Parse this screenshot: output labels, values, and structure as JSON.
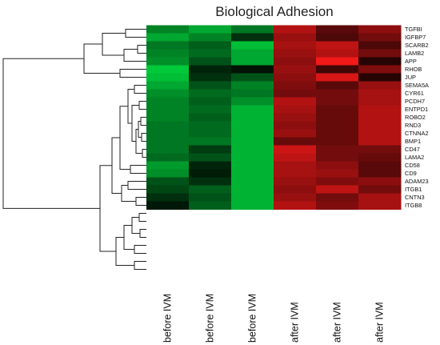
{
  "chart_data": {
    "type": "heatmap",
    "title": "Biological Adhesion",
    "columns": [
      "before IVM",
      "before IVM",
      "before IVM",
      "after IVM",
      "after IVM",
      "after IVM"
    ],
    "rows": [
      "TGFBI",
      "IGFBP7",
      "SCARB2",
      "LAMB2",
      "APP",
      "RHOB",
      "JUP",
      "SEMA5A",
      "CYR61",
      "PCDH7",
      "ENTPD1",
      "ROBO2",
      "RND3",
      "CTNNA2",
      "BMP1",
      "CD47",
      "LAMA2",
      "CD58",
      "CD9",
      "ADAM23",
      "ITGB1",
      "CNTN3",
      "ITGB8"
    ],
    "values": [
      [
        -0.55,
        -0.7,
        -0.5,
        0.7,
        0.35,
        0.55
      ],
      [
        -0.7,
        -0.55,
        -0.2,
        0.6,
        0.3,
        0.45
      ],
      [
        -0.5,
        -0.4,
        -0.8,
        0.65,
        0.75,
        0.3
      ],
      [
        -0.55,
        -0.45,
        -0.7,
        0.6,
        0.7,
        0.45
      ],
      [
        -0.6,
        -0.35,
        -0.7,
        0.55,
        0.95,
        0.15
      ],
      [
        -0.85,
        -0.15,
        -0.08,
        0.6,
        0.25,
        0.5
      ],
      [
        -0.8,
        -0.2,
        -0.35,
        0.55,
        0.85,
        0.15
      ],
      [
        -0.7,
        -0.35,
        -0.55,
        0.5,
        0.35,
        0.6
      ],
      [
        -0.6,
        -0.45,
        -0.5,
        0.45,
        0.45,
        0.65
      ],
      [
        -0.55,
        -0.4,
        -0.6,
        0.7,
        0.45,
        0.65
      ],
      [
        -0.55,
        -0.45,
        -0.75,
        0.65,
        0.4,
        0.7
      ],
      [
        -0.55,
        -0.4,
        -0.75,
        0.6,
        0.4,
        0.7
      ],
      [
        -0.5,
        -0.45,
        -0.75,
        0.55,
        0.4,
        0.7
      ],
      [
        -0.5,
        -0.45,
        -0.75,
        0.6,
        0.4,
        0.7
      ],
      [
        -0.5,
        -0.5,
        -0.75,
        0.4,
        0.4,
        0.7
      ],
      [
        -0.5,
        -0.25,
        -0.75,
        0.8,
        0.45,
        0.45
      ],
      [
        -0.45,
        -0.35,
        -0.75,
        0.75,
        0.45,
        0.4
      ],
      [
        -0.65,
        -0.15,
        -0.75,
        0.65,
        0.55,
        0.35
      ],
      [
        -0.6,
        -0.12,
        -0.75,
        0.65,
        0.6,
        0.35
      ],
      [
        -0.35,
        -0.2,
        -0.75,
        0.6,
        0.5,
        0.55
      ],
      [
        -0.3,
        -0.4,
        -0.75,
        0.55,
        0.75,
        0.45
      ],
      [
        -0.2,
        -0.35,
        -0.75,
        0.6,
        0.45,
        0.65
      ],
      [
        -0.1,
        -0.4,
        -0.75,
        0.7,
        0.5,
        0.65
      ]
    ],
    "colorscale": {
      "low": "#00ee44",
      "mid": "#000000",
      "high": "#ff1a1a"
    }
  }
}
